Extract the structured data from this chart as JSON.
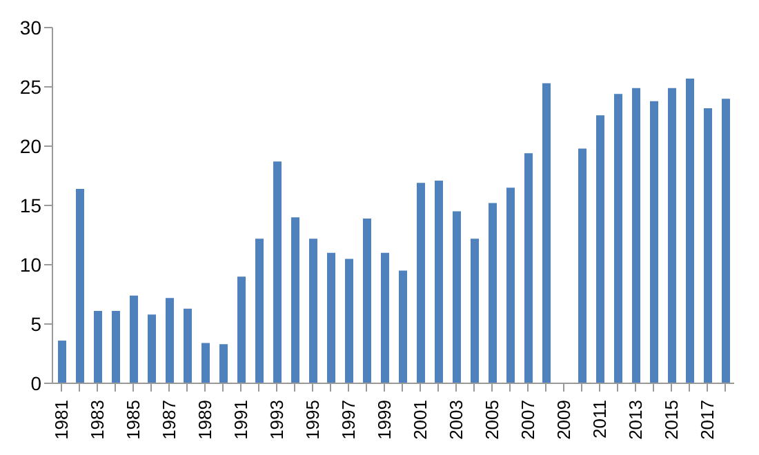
{
  "chart_data": {
    "type": "bar",
    "categories": [
      "1981",
      null,
      "1983",
      null,
      "1985",
      null,
      "1987",
      null,
      "1989",
      null,
      "1991",
      null,
      "1993",
      null,
      "1995",
      null,
      "1997",
      null,
      "1999",
      null,
      "2001",
      null,
      "2003",
      null,
      "2005",
      null,
      "2007",
      null,
      "2009",
      null,
      "2011",
      null,
      "2013",
      null,
      "2015",
      null,
      "2017",
      null
    ],
    "values": [
      3.6,
      16.4,
      6.1,
      6.1,
      7.4,
      5.8,
      7.2,
      6.3,
      3.4,
      3.3,
      9.0,
      12.2,
      18.7,
      14.0,
      12.2,
      11.0,
      10.5,
      13.9,
      11.0,
      9.5,
      16.9,
      17.1,
      14.5,
      12.2,
      15.2,
      16.5,
      19.4,
      25.3,
      null,
      19.8,
      22.6,
      24.4,
      24.9,
      23.8,
      24.9,
      25.7,
      23.2,
      24.0
    ],
    "color": "#4f81bd",
    "ylim": [
      0,
      30
    ],
    "yticks": [
      0,
      5,
      10,
      15,
      20,
      25,
      30
    ],
    "grid": false
  }
}
